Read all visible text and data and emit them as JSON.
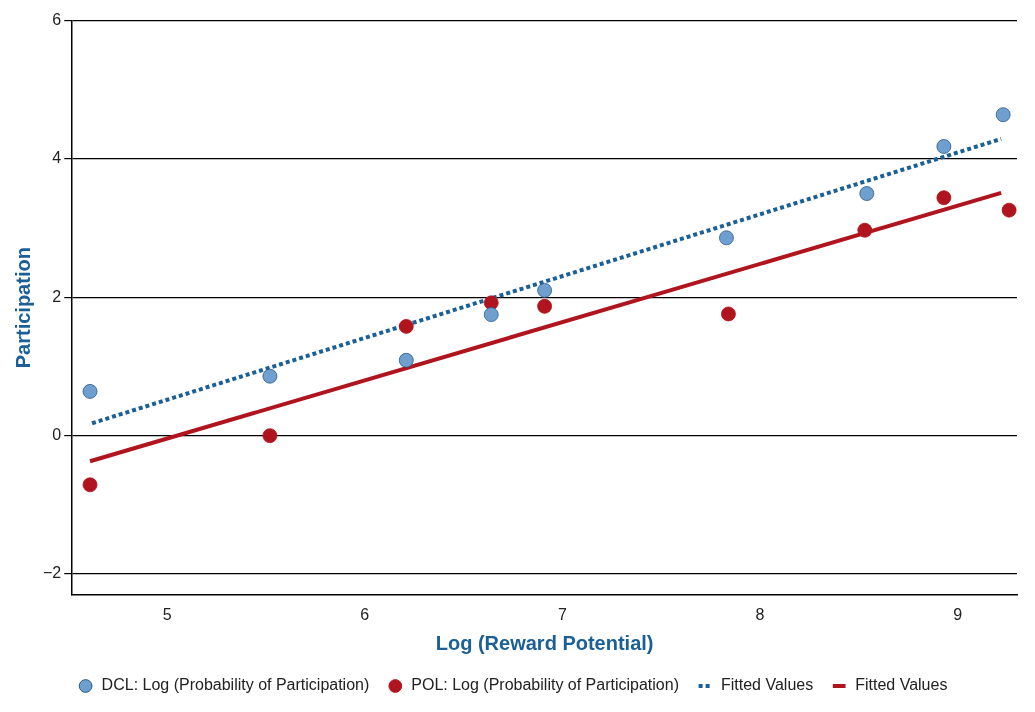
{
  "chart_data": {
    "type": "scatter",
    "xlabel": "Log (Reward Potential)",
    "ylabel": "Participation",
    "xlim": [
      4.52,
      9.3
    ],
    "xticks": [
      5,
      6,
      7,
      8,
      9
    ],
    "ylim": [
      -2.3,
      6
    ],
    "yticks": [
      -2,
      0,
      2,
      4,
      6
    ],
    "grid": "y",
    "legend": "bottom",
    "series": [
      {
        "name": "DCL: Log (Probability of Participation)",
        "marker": "circle",
        "color": "#6f9fcf",
        "x": [
          4.61,
          5.52,
          6.21,
          6.64,
          6.91,
          7.83,
          8.54,
          8.93,
          9.23
        ],
        "values": [
          0.64,
          0.86,
          1.09,
          1.75,
          2.1,
          2.86,
          3.5,
          4.18,
          4.64
        ]
      },
      {
        "name": "POL: Log (Probability of Participation)",
        "marker": "circle",
        "color": "#b0141e",
        "x": [
          4.61,
          5.52,
          6.21,
          6.64,
          6.91,
          7.84,
          8.53,
          8.93,
          9.26
        ],
        "values": [
          -0.71,
          0,
          1.58,
          1.92,
          1.87,
          1.76,
          2.97,
          3.44,
          3.26
        ]
      },
      {
        "name": "Fitted Values",
        "type": "line",
        "marker": "none",
        "line_style": "dotted",
        "color": "#1a5f96",
        "x": [
          4.62,
          9.22
        ],
        "values": [
          0.18,
          4.29
        ]
      },
      {
        "name": "Fitted Values",
        "type": "line",
        "marker": "none",
        "line_style": "solid",
        "color": "#b0141e",
        "x": [
          4.61,
          9.22
        ],
        "values": [
          -0.37,
          3.51
        ]
      }
    ]
  }
}
